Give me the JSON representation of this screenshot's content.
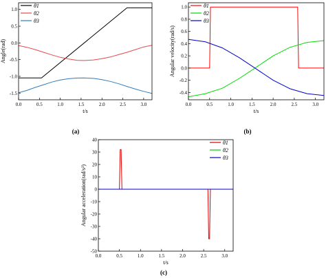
{
  "panels": [
    {
      "label": "(a)",
      "chart_data": {
        "type": "line",
        "xlabel": "t/s",
        "ylabel": "Angle(rad)",
        "xlim": [
          0,
          3.2
        ],
        "ylim": [
          -1.7,
          1.2
        ],
        "xticks": [
          "0.0",
          "0.5",
          "1.0",
          "1.5",
          "2.0",
          "2.5",
          "3.0"
        ],
        "xtick_values": [
          0,
          0.5,
          1.0,
          1.5,
          2.0,
          2.5,
          3.0
        ],
        "yticks": [
          "-1.5",
          "-1.0",
          "-0.5",
          "0.0",
          "0.5",
          "1.0"
        ],
        "ytick_values": [
          -1.5,
          -1.0,
          -0.5,
          0.0,
          0.5,
          1.0
        ],
        "legend_position": "top-left",
        "series": [
          {
            "name": "θ1",
            "color": "#000000",
            "x": [
              0,
              0.55,
              2.6,
              3.2
            ],
            "y": [
              -1.047,
              -1.047,
              1.047,
              1.047
            ]
          },
          {
            "name": "θ2",
            "color": "#e8474c",
            "x": [
              0,
              0.2,
              0.4,
              0.6,
              0.8,
              1.0,
              1.2,
              1.4,
              1.57,
              1.8,
              2.0,
              2.2,
              2.4,
              2.6,
              2.8,
              3.0,
              3.2
            ],
            "y": [
              -0.08,
              -0.13,
              -0.2,
              -0.28,
              -0.36,
              -0.43,
              -0.48,
              -0.52,
              -0.525,
              -0.51,
              -0.47,
              -0.42,
              -0.35,
              -0.28,
              -0.2,
              -0.12,
              -0.07
            ]
          },
          {
            "name": "θ3",
            "color": "#2e7bbf",
            "x": [
              0,
              0.2,
              0.4,
              0.6,
              0.8,
              1.0,
              1.2,
              1.4,
              1.57,
              1.8,
              2.0,
              2.2,
              2.4,
              2.6,
              2.8,
              3.0,
              3.2
            ],
            "y": [
              -1.49,
              -1.42,
              -1.33,
              -1.25,
              -1.17,
              -1.11,
              -1.07,
              -1.05,
              -1.045,
              -1.06,
              -1.1,
              -1.15,
              -1.22,
              -1.3,
              -1.38,
              -1.45,
              -1.51
            ]
          }
        ]
      }
    },
    {
      "label": "(b)",
      "chart_data": {
        "type": "line",
        "xlabel": "t/s",
        "ylabel": "Angular velocity(rad/s)",
        "xlim": [
          0,
          3.2
        ],
        "ylim": [
          -0.52,
          1.07
        ],
        "xticks": [
          "0.0",
          "0.5",
          "1.0",
          "1.5",
          "2.0",
          "2.5",
          "3.0"
        ],
        "xtick_values": [
          0,
          0.5,
          1.0,
          1.5,
          2.0,
          2.5,
          3.0
        ],
        "yticks": [
          "-0.4",
          "-0.2",
          "0.0",
          "0.2",
          "0.4",
          "0.6",
          "0.8",
          "1.0"
        ],
        "ytick_values": [
          -0.4,
          -0.2,
          0.0,
          0.2,
          0.4,
          0.6,
          0.8,
          1.0
        ],
        "legend_position": "top-left",
        "series": [
          {
            "name": "θ1",
            "color": "#ff0000",
            "x": [
              0,
              0.5,
              0.52,
              2.58,
              2.6,
              3.2
            ],
            "y": [
              0,
              0,
              1.0,
              1.0,
              0,
              0
            ]
          },
          {
            "name": "θ2",
            "color": "#00dd00",
            "x": [
              0,
              0.4,
              0.8,
              1.2,
              1.57,
              2.0,
              2.4,
              2.8,
              3.2
            ],
            "y": [
              -0.47,
              -0.42,
              -0.33,
              -0.17,
              0.0,
              0.2,
              0.34,
              0.42,
              0.45
            ]
          },
          {
            "name": "θ3",
            "color": "#0000cc",
            "x": [
              0,
              0.4,
              0.8,
              1.2,
              1.57,
              2.0,
              2.4,
              2.8,
              3.2
            ],
            "y": [
              0.47,
              0.43,
              0.33,
              0.17,
              0.0,
              -0.2,
              -0.34,
              -0.42,
              -0.45
            ]
          }
        ]
      }
    },
    {
      "label": "(c)",
      "chart_data": {
        "type": "line",
        "xlabel": "t/s",
        "ylabel": "Angular acceleration(rad/s²)",
        "xlim": [
          0,
          3.2
        ],
        "ylim": [
          -50,
          40
        ],
        "xticks": [
          "0.0",
          "0.5",
          "1.0",
          "1.5",
          "2.0",
          "2.5",
          "3.0"
        ],
        "xtick_values": [
          0,
          0.5,
          1.0,
          1.5,
          2.0,
          2.5,
          3.0
        ],
        "yticks": [
          "-50",
          "-40",
          "-30",
          "-20",
          "-10",
          "0",
          "10",
          "20",
          "30",
          "40"
        ],
        "ytick_values": [
          -50,
          -40,
          -30,
          -20,
          -10,
          0,
          10,
          20,
          30,
          40
        ],
        "legend_position": "top-right",
        "series": [
          {
            "name": "θ1",
            "color": "#dd0000",
            "x": [
              0,
              0.5,
              0.52,
              0.54,
              0.56,
              2.6,
              2.62,
              2.64,
              2.66,
              3.2
            ],
            "y": [
              0,
              0,
              32,
              32,
              0,
              0,
              -40,
              -40,
              0,
              0
            ]
          },
          {
            "name": "θ2",
            "color": "#00cc00",
            "x": [
              0,
              3.2
            ],
            "y": [
              0,
              0
            ]
          },
          {
            "name": "θ3",
            "color": "#0000cc",
            "x": [
              0,
              3.2
            ],
            "y": [
              0,
              0
            ]
          }
        ]
      }
    }
  ]
}
